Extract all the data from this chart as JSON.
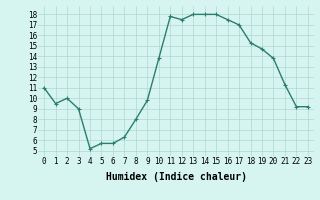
{
  "x": [
    0,
    1,
    2,
    3,
    4,
    5,
    6,
    7,
    8,
    9,
    10,
    11,
    12,
    13,
    14,
    15,
    16,
    17,
    18,
    19,
    20,
    21,
    22,
    23
  ],
  "y": [
    11,
    9.5,
    10,
    9,
    5.2,
    5.7,
    5.7,
    6.3,
    8,
    9.8,
    13.8,
    17.8,
    17.5,
    18,
    18,
    18,
    17.5,
    17,
    15.3,
    14.7,
    13.8,
    11.3,
    9.2,
    9.2
  ],
  "line_color": "#2d7d6e",
  "marker": "+",
  "marker_size": 3,
  "line_width": 1.0,
  "bg_color": "#d6f5f0",
  "grid_color": "#b0d8d0",
  "xlabel": "Humidex (Indice chaleur)",
  "xlabel_fontsize": 7,
  "xlim": [
    -0.5,
    23.5
  ],
  "ylim": [
    4.5,
    18.8
  ],
  "xtick_labels": [
    "0",
    "1",
    "2",
    "3",
    "4",
    "5",
    "6",
    "7",
    "8",
    "9",
    "10",
    "11",
    "12",
    "13",
    "14",
    "15",
    "16",
    "17",
    "18",
    "19",
    "20",
    "21",
    "22",
    "23"
  ],
  "ytick_values": [
    5,
    6,
    7,
    8,
    9,
    10,
    11,
    12,
    13,
    14,
    15,
    16,
    17,
    18
  ],
  "tick_fontsize": 5.5
}
